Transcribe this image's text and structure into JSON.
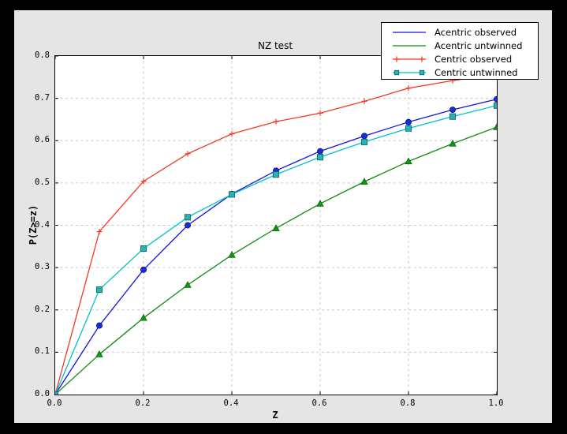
{
  "window": {
    "page_bg": "#000000",
    "figure_bg": "#e5e5e5",
    "plot_bg": "#ffffff",
    "grid_color": "#c9c9c9",
    "text_color": "#000000"
  },
  "chart_data": {
    "type": "line",
    "title": "NZ test",
    "xlabel": "Z",
    "ylabel": "P(Z>=z)",
    "xlim": [
      0.0,
      1.0
    ],
    "ylim": [
      0.0,
      0.8
    ],
    "xticks": [
      0.0,
      0.2,
      0.4,
      0.6,
      0.8,
      1.0
    ],
    "yticks": [
      0.0,
      0.1,
      0.2,
      0.3,
      0.4,
      0.5,
      0.6,
      0.7,
      0.8
    ],
    "xgrid": [
      0.2,
      0.4,
      0.6,
      0.8
    ],
    "ygrid": [
      0.1,
      0.2,
      0.3,
      0.4,
      0.5,
      0.6,
      0.7
    ],
    "grid": true,
    "legend_position": "upper right",
    "x": [
      0.0,
      0.1,
      0.2,
      0.3,
      0.4,
      0.5,
      0.6,
      0.7,
      0.8,
      0.9,
      1.0
    ],
    "series": [
      {
        "name": "Acentric observed",
        "color": "#1414dd",
        "marker": "circle",
        "marker_fill": "#1a2fd0",
        "marker_edge": "#000090",
        "legend_markers": false,
        "values": [
          0.0,
          0.163,
          0.295,
          0.4,
          0.474,
          0.529,
          0.575,
          0.611,
          0.644,
          0.673,
          0.698
        ]
      },
      {
        "name": "Acentric untwinned",
        "color": "#0e8c0e",
        "marker": "triangle",
        "marker_fill": "#119611",
        "marker_edge": "#005500",
        "legend_markers": false,
        "values": [
          0.0,
          0.095,
          0.181,
          0.259,
          0.33,
          0.393,
          0.451,
          0.503,
          0.551,
          0.593,
          0.632
        ]
      },
      {
        "name": "Centric observed",
        "color": "#f13826",
        "marker": "plus",
        "marker_fill": "#f13826",
        "marker_edge": "#f13826",
        "legend_markers": true,
        "values": [
          0.0,
          0.385,
          0.504,
          0.569,
          0.616,
          0.645,
          0.665,
          0.693,
          0.724,
          0.742,
          0.757
        ]
      },
      {
        "name": "Centric untwinned",
        "color": "#00c3c3",
        "marker": "square",
        "marker_fill": "#29b3b3",
        "marker_edge": "#0d6a6a",
        "legend_markers": true,
        "values": [
          0.0,
          0.248,
          0.345,
          0.419,
          0.473,
          0.52,
          0.561,
          0.597,
          0.629,
          0.657,
          0.683
        ]
      }
    ]
  }
}
